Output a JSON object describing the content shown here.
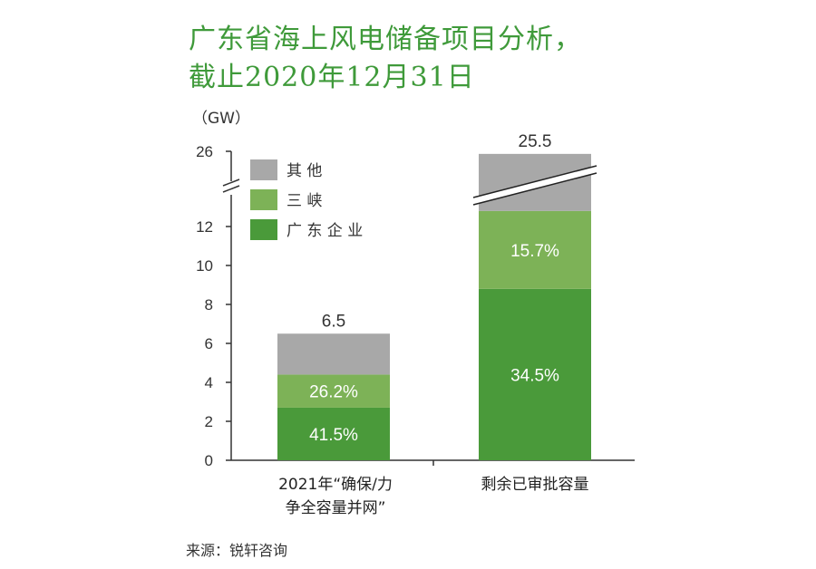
{
  "title_line1": "广东省海上风电储备项目分析，",
  "title_line2": "截止2020年12月31日",
  "source": "来源：锐轩咨询",
  "colors": {
    "title": "#3f9a3a",
    "guangdong": "#4a9a3a",
    "sanxia": "#7db257",
    "other": "#a8a8a8"
  },
  "chart_data": {
    "type": "bar",
    "stacked": true,
    "ylabel": "（GW）",
    "yticks": [
      "0",
      "2",
      "4",
      "6",
      "8",
      "10",
      "12",
      "26"
    ],
    "ylim": [
      0,
      26
    ],
    "axis_break": [
      13,
      24
    ],
    "categories": [
      "2021年“确保/力争全容量并网”",
      "剩余已审批容量"
    ],
    "category_lines": [
      [
        "2021年“确保/力",
        "争全容量并网”"
      ],
      [
        "剩余已审批容量"
      ]
    ],
    "totals": [
      6.5,
      25.5
    ],
    "total_labels": [
      "6.5",
      "25.5"
    ],
    "series": [
      {
        "name": "广东企业",
        "values": [
          2.7,
          8.8
        ],
        "labels": [
          "41.5%",
          "34.5%"
        ]
      },
      {
        "name": "三峡",
        "values": [
          1.7,
          4.0
        ],
        "labels": [
          "26.2%",
          "15.7%"
        ]
      },
      {
        "name": "其他",
        "values": [
          2.1,
          12.7
        ],
        "labels": [
          "",
          ""
        ]
      }
    ],
    "legend": [
      "其他",
      "三峡",
      "广东企业"
    ],
    "legend_position": "top-left",
    "grid": false
  }
}
